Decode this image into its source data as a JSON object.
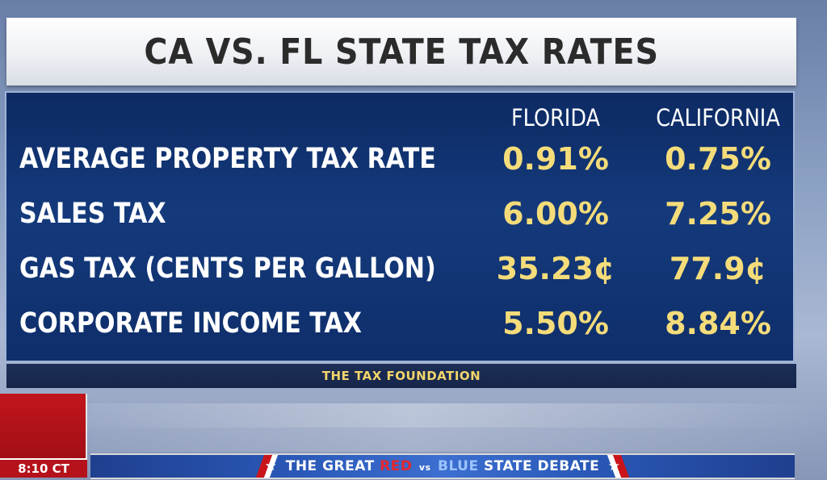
{
  "title": "CA VS. FL STATE TAX RATES",
  "columns": [
    "FLORIDA",
    "CALIFORNIA"
  ],
  "rows": [
    {
      "label": "AVERAGE PROPERTY TAX RATE",
      "florida": "0.91%",
      "california": "0.75%"
    },
    {
      "label": "SALES TAX",
      "florida": "6.00%",
      "california": "7.25%"
    },
    {
      "label": "GAS TAX (CENTS PER GALLON)",
      "florida": "35.23¢",
      "california": "77.9¢"
    },
    {
      "label": "CORPORATE INCOME TAX",
      "florida": "5.50%",
      "california": "8.84%"
    }
  ],
  "source": "THE TAX FOUNDATION",
  "clock": "8:10 CT",
  "ticker": {
    "part1": "THE GREAT",
    "red": "RED",
    "vs": "vs",
    "blue": "BLUE",
    "part2": "STATE DEBATE",
    "star": "★"
  },
  "colors": {
    "panel_blue": "#143a7c",
    "value_yellow": "#f4dc7a",
    "source_yellow": "#f2d56a",
    "alert_red": "#b5121b"
  }
}
